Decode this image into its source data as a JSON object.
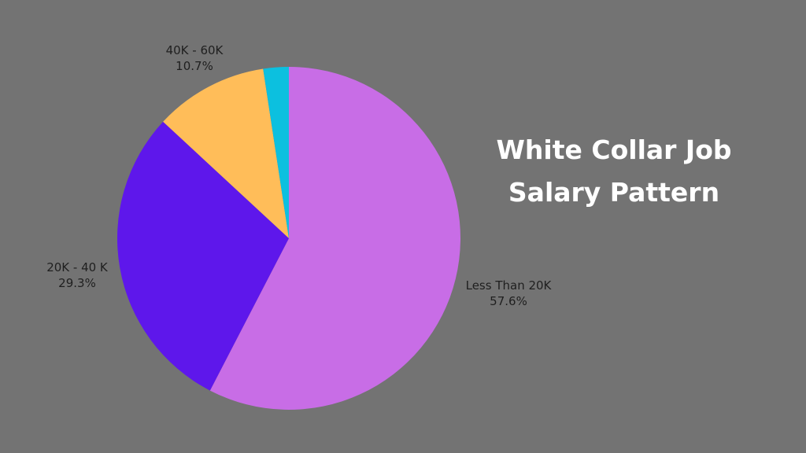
{
  "chart_data": {
    "type": "pie",
    "title_lines": [
      "White Collar Job",
      "Salary Pattern"
    ],
    "slices": [
      {
        "label": "Less Than 20K",
        "value": 57.6,
        "value_text": "57.6%",
        "color": "#c86de6"
      },
      {
        "label": "20K - 40 K",
        "value": 29.3,
        "value_text": "29.3%",
        "color": "#5e17eb"
      },
      {
        "label": "40K - 60K",
        "value": 10.7,
        "value_text": "10.7%",
        "color": "#ffbd59"
      },
      {
        "label": "",
        "value": 2.4,
        "value_text": "",
        "color": "#0cc0df"
      }
    ],
    "start": "12 o'clock",
    "direction": "clockwise",
    "background": "#737373",
    "title_color": "#ffffff"
  }
}
